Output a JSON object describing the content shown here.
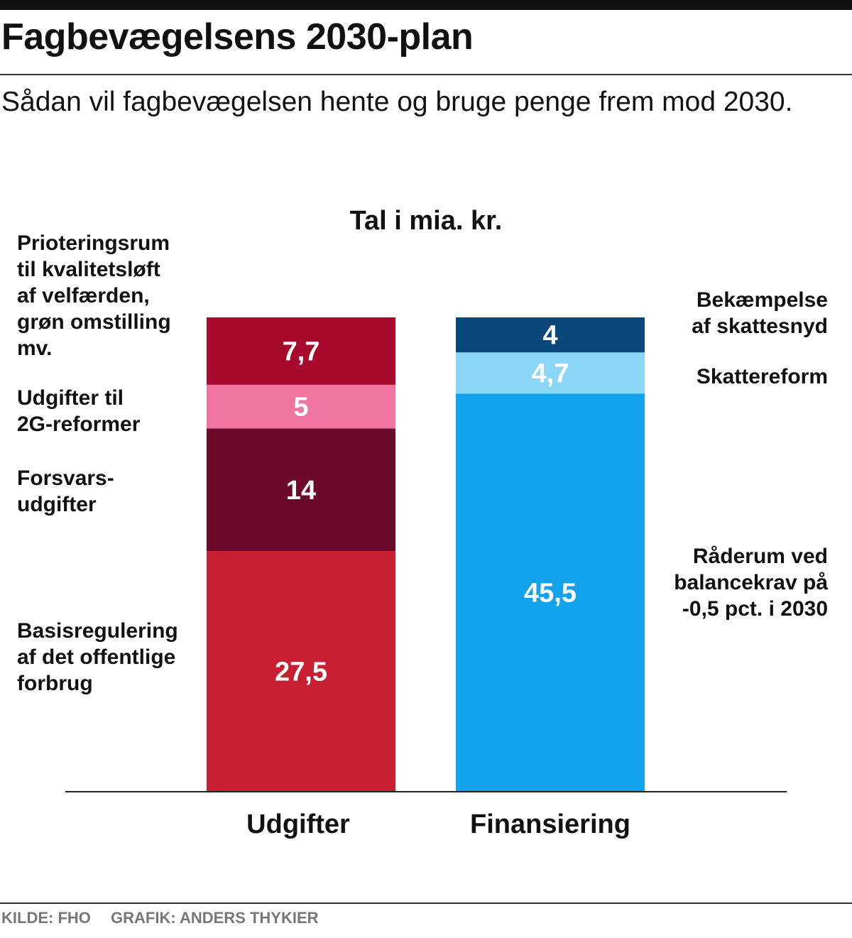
{
  "title": "Fagbevægelsens 2030-plan",
  "subtitle": "Sådan vil fagbevægelsen hente og bruge penge frem mod 2030.",
  "unit_label": "Tal i mia. kr.",
  "footer": {
    "source": "KILDE: FHO",
    "credit": "GRAFIK: ANDERS THYKIER"
  },
  "chart_data": {
    "type": "bar",
    "stacked": true,
    "categories": [
      "Udgifter",
      "Finansiering"
    ],
    "stacks": [
      {
        "category": "Udgifter",
        "segments": [
          {
            "label": "Basisregulering af det offentlige forbrug",
            "value": 27.5,
            "display": "27,5",
            "color": "#c81f32"
          },
          {
            "label": "Forsvars-udgifter",
            "value": 14,
            "display": "14",
            "color": "#6d0a2b"
          },
          {
            "label": "Udgifter til 2G-reformer",
            "value": 5,
            "display": "5",
            "color": "#f075a2"
          },
          {
            "label": "Prioteringsrum til kvalitetsløft af velfærden, grøn omstilling mv.",
            "value": 7.7,
            "display": "7,7",
            "color": "#a80a2d"
          }
        ]
      },
      {
        "category": "Finansiering",
        "segments": [
          {
            "label": "Råderum ved balancekrav på -0,5 pct. i 2030",
            "value": 45.5,
            "display": "45,5",
            "color": "#12a3ec"
          },
          {
            "label": "Skattereform",
            "value": 4.7,
            "display": "4,7",
            "color": "#89d6f6"
          },
          {
            "label": "Bekæmpelse af skattesnyd",
            "value": 4,
            "display": "4",
            "color": "#0a477a"
          }
        ]
      }
    ],
    "labels_left": [
      "Prioteringsrum",
      "til kvalitetsløft",
      "af velfærden,",
      "grøn omstilling",
      "mv."
    ],
    "labels": {
      "prior": [
        "Prioteringsrum",
        "til kvalitetsløft",
        "af velfærden,",
        "grøn omstilling",
        "mv."
      ],
      "twog": [
        "Udgifter til",
        "2G-reformer"
      ],
      "forsvar": [
        "Forsvars-",
        "udgifter"
      ],
      "basis": [
        "Basisregulering",
        "af det offentlige",
        "forbrug"
      ],
      "snyd": [
        "Bekæmpelse",
        "af skattesnyd"
      ],
      "skat": [
        "Skattereform"
      ],
      "raderum": [
        "Råderum ved",
        "balancekrav på",
        "-0,5 pct. i 2030"
      ]
    }
  }
}
